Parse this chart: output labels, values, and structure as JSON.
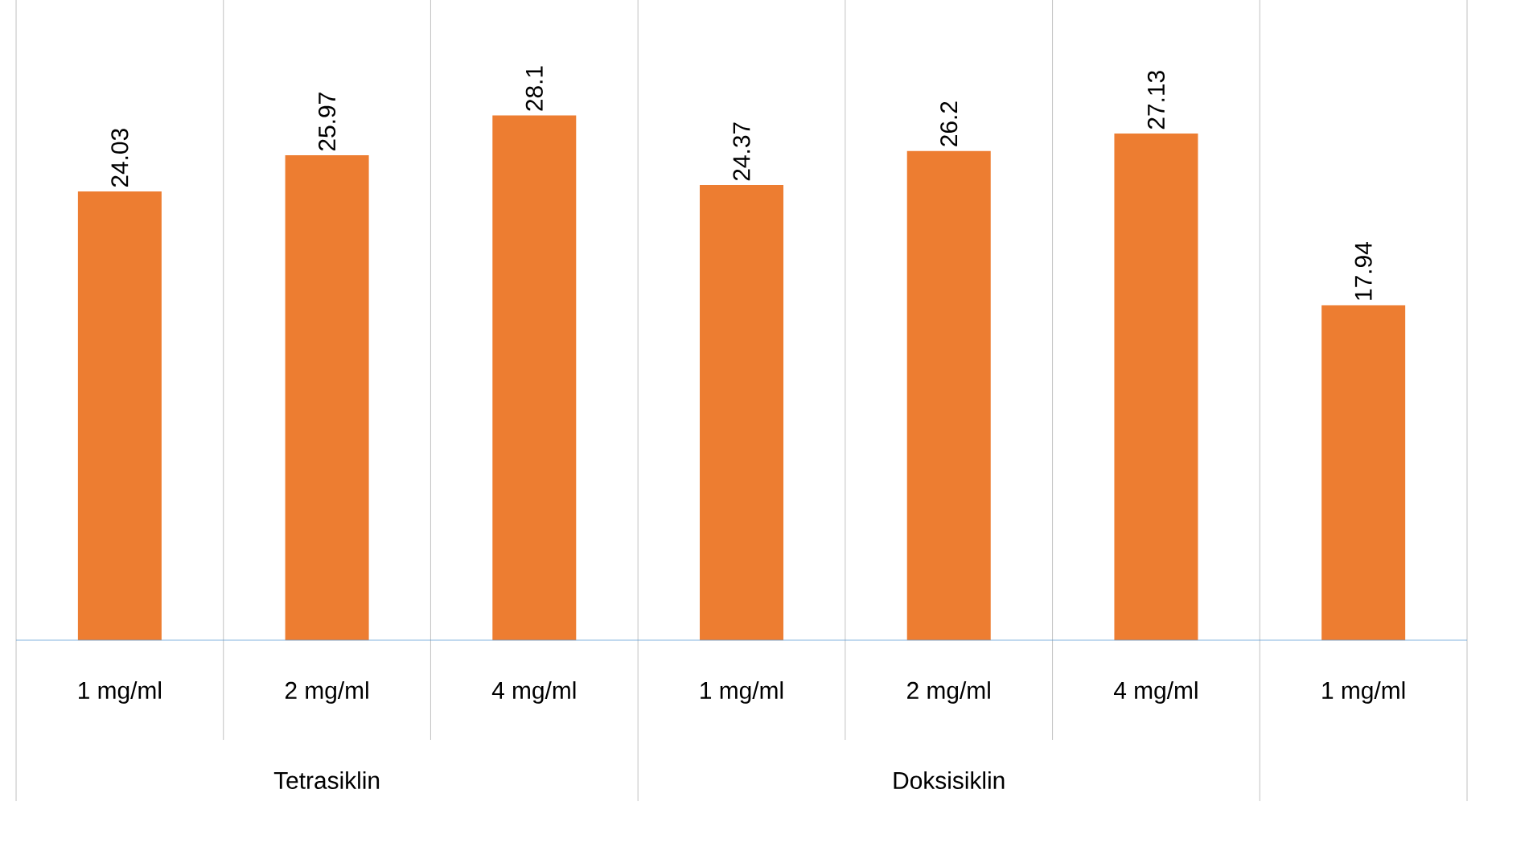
{
  "chart_data": {
    "type": "bar",
    "categories": [
      "1 mg/ml",
      "2 mg/ml",
      "4 mg/ml",
      "1 mg/ml",
      "2 mg/ml",
      "4 mg/ml",
      "1 mg/ml"
    ],
    "values": [
      24.03,
      25.97,
      28.1,
      24.37,
      26.2,
      27.13,
      17.94
    ],
    "color": "#ed7d31",
    "data_labels": true,
    "annotations": [
      "Tetrasiklin",
      "Doksisiklin"
    ]
  }
}
